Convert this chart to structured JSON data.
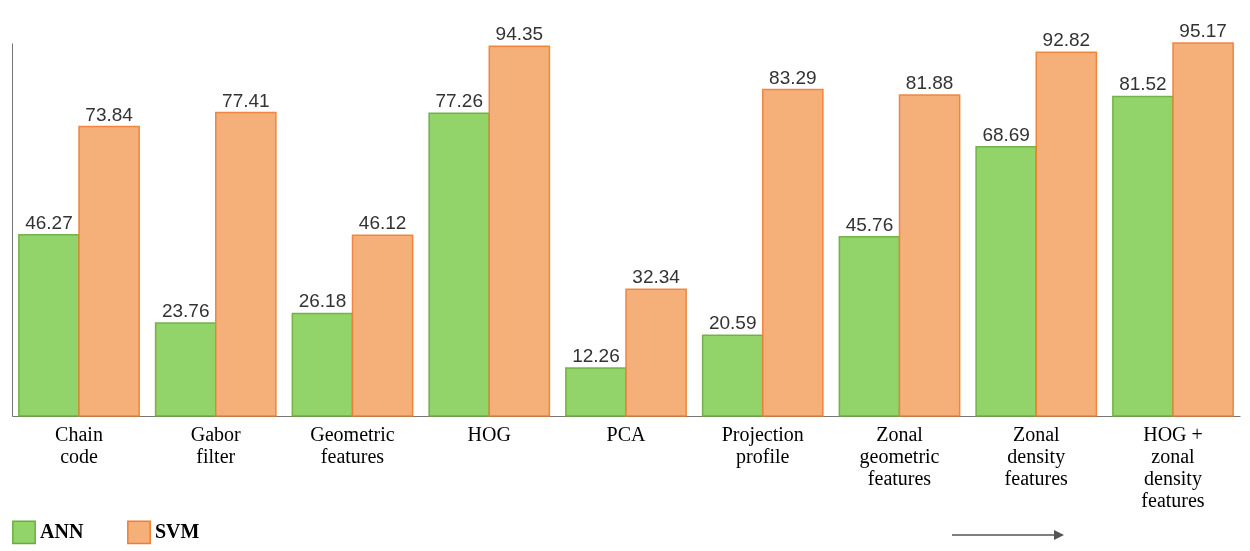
{
  "chart_data": {
    "type": "bar",
    "categories": [
      "Chain code",
      "Gabor filter",
      "Geometric features",
      "HOG",
      "PCA",
      "Projection profile",
      "Zonal geometric features",
      "Zonal density features",
      "HOG + zonal density features"
    ],
    "series": [
      {
        "name": "ANN",
        "color": "#92d36a",
        "values": [
          46.27,
          23.76,
          26.18,
          77.26,
          12.26,
          20.59,
          45.76,
          68.69,
          81.52
        ]
      },
      {
        "name": "SVM",
        "color": "#f5b07a",
        "values": [
          73.84,
          77.41,
          46.12,
          94.35,
          32.34,
          83.29,
          81.88,
          92.82,
          95.17
        ]
      }
    ],
    "data_labels": true,
    "legend": "bottom",
    "tick_labels": "x"
  }
}
